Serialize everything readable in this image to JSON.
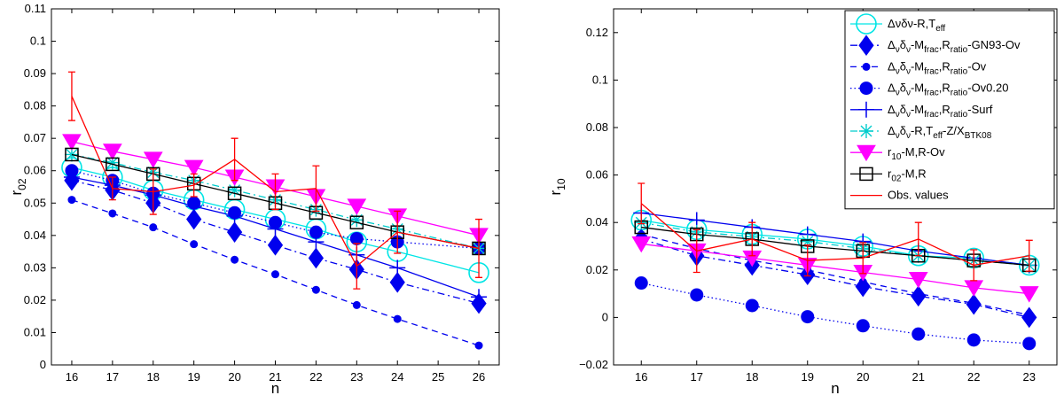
{
  "chart_data": [
    {
      "type": "line",
      "xlabel": "n",
      "ylabel": "r",
      "ylabel_sub": "02",
      "xlim": [
        15.5,
        26.5
      ],
      "ylim": [
        0,
        0.11
      ],
      "xticks": [
        "16",
        "17",
        "18",
        "19",
        "20",
        "21",
        "22",
        "23",
        "24",
        "25",
        "26"
      ],
      "yticks": [
        "0",
        "0.01",
        "0.02",
        "0.03",
        "0.04",
        "0.05",
        "0.06",
        "0.07",
        "0.08",
        "0.09",
        "0.1",
        "0.11"
      ],
      "series": [
        {
          "name": "Δνδν-R,Teff",
          "color": "#00e5e5",
          "dash": "solid",
          "marker": "circle-open",
          "x": [
            16,
            17,
            18,
            19,
            20,
            21,
            22,
            23,
            24,
            26
          ],
          "y": [
            0.061,
            0.058,
            0.054,
            0.051,
            0.048,
            0.045,
            0.042,
            0.038,
            0.035,
            0.0285
          ]
        },
        {
          "name": "Δνδν-Mfrac,Rratio-GN93-Ov",
          "color": "#0000ee",
          "dash": "dashdot",
          "marker": "diamond",
          "x": [
            16,
            17,
            18,
            19,
            20,
            21,
            22,
            23,
            24,
            26
          ],
          "y": [
            0.057,
            0.054,
            0.05,
            0.045,
            0.041,
            0.037,
            0.033,
            0.0295,
            0.0255,
            0.019
          ]
        },
        {
          "name": "Δνδν-Mfrac,Rratio-Ov",
          "color": "#0000ee",
          "dash": "dashed",
          "marker": "dot-small",
          "x": [
            16,
            17,
            18,
            19,
            20,
            21,
            22,
            23,
            24,
            26
          ],
          "y": [
            0.051,
            0.0468,
            0.0425,
            0.0373,
            0.0325,
            0.028,
            0.0232,
            0.0185,
            0.0142,
            0.006
          ]
        },
        {
          "name": "Δνδν-Mfrac,Rratio-Ov0.20",
          "color": "#0000ee",
          "dash": "dotted",
          "marker": "dot-large",
          "x": [
            16,
            17,
            18,
            19,
            20,
            21,
            22,
            23,
            24,
            26
          ],
          "y": [
            0.06,
            0.057,
            0.053,
            0.05,
            0.047,
            0.044,
            0.041,
            0.039,
            0.038,
            0.036
          ]
        },
        {
          "name": "Δνδν-Mfrac,Rratio-Surf",
          "color": "#0000ee",
          "dash": "solid",
          "marker": "plus",
          "x": [
            16,
            17,
            18,
            19,
            20,
            21,
            22,
            23,
            24,
            26
          ],
          "y": [
            0.058,
            0.0555,
            0.0525,
            0.049,
            0.046,
            0.042,
            0.038,
            0.034,
            0.03,
            0.021
          ]
        },
        {
          "name": "Δνδν-R,Teff-Z/XBTK08",
          "color": "#00cccc",
          "dash": "dashdot",
          "marker": "asterisk",
          "x": [
            16,
            17,
            18,
            19,
            20,
            21,
            22,
            23,
            24,
            26
          ],
          "y": [
            0.065,
            0.0625,
            0.0595,
            0.057,
            0.054,
            0.051,
            0.048,
            0.0448,
            0.042,
            0.036
          ]
        },
        {
          "name": "r10-M,R-Ov",
          "color": "#ff00ff",
          "dash": "solid",
          "marker": "triangle-down",
          "x": [
            16,
            17,
            18,
            19,
            20,
            21,
            22,
            23,
            24,
            26
          ],
          "y": [
            0.069,
            0.066,
            0.0635,
            0.061,
            0.058,
            0.055,
            0.052,
            0.049,
            0.046,
            0.04
          ]
        },
        {
          "name": "r02-M,R",
          "color": "#000000",
          "dash": "solid",
          "marker": "square-open",
          "x": [
            16,
            17,
            18,
            19,
            20,
            21,
            22,
            23,
            24,
            26
          ],
          "y": [
            0.065,
            0.062,
            0.059,
            0.056,
            0.053,
            0.05,
            0.047,
            0.044,
            0.041,
            0.036
          ]
        },
        {
          "name": "Obs. values",
          "color": "#ff0000",
          "dash": "solid",
          "marker": "errorbar",
          "x": [
            16,
            17,
            18,
            19,
            20,
            21,
            22,
            23,
            24,
            26
          ],
          "y": [
            0.083,
            0.0545,
            0.0535,
            0.0555,
            0.0635,
            0.0535,
            0.0545,
            0.0305,
            0.041,
            0.036
          ],
          "err": [
            0.0075,
            0.0035,
            0.007,
            0.0035,
            0.0065,
            0.0055,
            0.007,
            0.007,
            0.0065,
            0.009
          ]
        }
      ]
    },
    {
      "type": "line",
      "xlabel": "n",
      "ylabel": "r",
      "ylabel_sub": "10",
      "xlim": [
        15.5,
        23.5
      ],
      "ylim": [
        -0.02,
        0.13
      ],
      "xticks": [
        "16",
        "17",
        "18",
        "19",
        "20",
        "21",
        "22",
        "23"
      ],
      "yticks": [
        "−0.02",
        "0",
        "0.02",
        "0.04",
        "0.06",
        "0.08",
        "0.1",
        "0.12"
      ],
      "series": [
        {
          "name": "Δνδν-R,Teff",
          "color": "#00e5e5",
          "dash": "solid",
          "marker": "circle-open",
          "x": [
            16,
            17,
            18,
            19,
            20,
            21,
            22,
            23
          ],
          "y": [
            0.041,
            0.037,
            0.035,
            0.033,
            0.03,
            0.026,
            0.025,
            0.022
          ]
        },
        {
          "name": "Δνδν-Mfrac,Rratio-GN93-Ov",
          "color": "#0000ee",
          "dash": "dashdot",
          "marker": "diamond",
          "x": [
            16,
            17,
            18,
            19,
            20,
            21,
            22,
            23
          ],
          "y": [
            0.033,
            0.026,
            0.022,
            0.018,
            0.013,
            0.009,
            0.0055,
            0.0
          ]
        },
        {
          "name": "Δνδν-Mfrac,Rratio-Ov",
          "color": "#0000ee",
          "dash": "dashed",
          "marker": "dot-small",
          "x": [
            16,
            17,
            18,
            19,
            20,
            21,
            22,
            23
          ],
          "y": [
            0.035,
            0.029,
            0.024,
            0.02,
            0.015,
            0.01,
            0.006,
            0.001
          ]
        },
        {
          "name": "Δνδν-Mfrac,Rratio-Ov0.20",
          "color": "#0000ee",
          "dash": "dotted",
          "marker": "dot-large",
          "x": [
            16,
            17,
            18,
            19,
            20,
            21,
            22,
            23
          ],
          "y": [
            0.0145,
            0.0095,
            0.005,
            0.0003,
            -0.0035,
            -0.007,
            -0.0095,
            -0.011
          ]
        },
        {
          "name": "Δνδν-Mfrac,Rratio-Surf",
          "color": "#0000ee",
          "dash": "solid",
          "marker": "plus",
          "x": [
            16,
            17,
            18,
            19,
            20,
            21,
            22,
            23
          ],
          "y": [
            0.044,
            0.041,
            0.038,
            0.035,
            0.032,
            0.028,
            0.025,
            0.022
          ]
        },
        {
          "name": "Δνδν-R,Teff-Z/XBTK08",
          "color": "#00cccc",
          "dash": "dashdot",
          "marker": "asterisk",
          "x": [
            16,
            17,
            18,
            19,
            20,
            21,
            22,
            23
          ],
          "y": [
            0.04,
            0.036,
            0.034,
            0.032,
            0.029,
            0.026,
            0.024,
            0.022
          ]
        },
        {
          "name": "r10-M,R-Ov",
          "color": "#ff00ff",
          "dash": "solid",
          "marker": "triangle-down",
          "x": [
            16,
            17,
            18,
            19,
            20,
            21,
            22,
            23
          ],
          "y": [
            0.031,
            0.028,
            0.025,
            0.022,
            0.019,
            0.016,
            0.0125,
            0.01
          ]
        },
        {
          "name": "r02-M,R",
          "color": "#000000",
          "dash": "solid",
          "marker": "square-open",
          "x": [
            16,
            17,
            18,
            19,
            20,
            21,
            22,
            23
          ],
          "y": [
            0.038,
            0.035,
            0.033,
            0.03,
            0.028,
            0.026,
            0.024,
            0.022
          ]
        },
        {
          "name": "Obs. values",
          "color": "#ff0000",
          "dash": "solid",
          "marker": "errorbar",
          "x": [
            16,
            17,
            18,
            19,
            20,
            21,
            22,
            23
          ],
          "y": [
            0.048,
            0.028,
            0.033,
            0.024,
            0.025,
            0.033,
            0.022,
            0.026
          ],
          "err": [
            0.0085,
            0.009,
            0.007,
            0.0065,
            0.0065,
            0.007,
            0.0065,
            0.0065
          ]
        }
      ]
    }
  ],
  "legend": {
    "placement": "top-right",
    "entries": [
      {
        "series": 0,
        "parts": [
          [
            "Δ",
            ""
          ],
          [
            "ν",
            ""
          ],
          [
            "δ",
            ""
          ],
          [
            "ν",
            ""
          ],
          [
            "-R,T",
            ""
          ],
          [
            "eff",
            "sub"
          ]
        ]
      },
      {
        "series": 1,
        "parts": [
          [
            "Δ",
            ""
          ],
          [
            "ν",
            "sub"
          ],
          [
            "δ",
            ""
          ],
          [
            "ν",
            "sub"
          ],
          [
            "-M",
            ""
          ],
          [
            "frac",
            "sub"
          ],
          [
            ",R",
            ""
          ],
          [
            "ratio",
            "sub"
          ],
          [
            "-GN93-Ov",
            ""
          ]
        ]
      },
      {
        "series": 2,
        "parts": [
          [
            "Δ",
            ""
          ],
          [
            "ν",
            "sub"
          ],
          [
            "δ",
            ""
          ],
          [
            "ν",
            "sub"
          ],
          [
            "-M",
            ""
          ],
          [
            "frac",
            "sub"
          ],
          [
            ",R",
            ""
          ],
          [
            "ratio",
            "sub"
          ],
          [
            "-Ov",
            ""
          ]
        ]
      },
      {
        "series": 3,
        "parts": [
          [
            "Δ",
            ""
          ],
          [
            "ν",
            "sub"
          ],
          [
            "δ",
            ""
          ],
          [
            "ν",
            "sub"
          ],
          [
            "-M",
            ""
          ],
          [
            "frac",
            "sub"
          ],
          [
            ",R",
            ""
          ],
          [
            "ratio",
            "sub"
          ],
          [
            "-Ov0.20",
            ""
          ]
        ]
      },
      {
        "series": 4,
        "parts": [
          [
            "Δ",
            ""
          ],
          [
            "ν",
            "sub"
          ],
          [
            "δ",
            ""
          ],
          [
            "ν",
            "sub"
          ],
          [
            "-M",
            ""
          ],
          [
            "frac",
            "sub"
          ],
          [
            ",R",
            ""
          ],
          [
            "ratio",
            "sub"
          ],
          [
            "-Surf",
            ""
          ]
        ]
      },
      {
        "series": 5,
        "parts": [
          [
            "Δ",
            ""
          ],
          [
            "ν",
            "sub"
          ],
          [
            "δ",
            ""
          ],
          [
            "ν",
            "sub"
          ],
          [
            "-R,T",
            ""
          ],
          [
            "eff",
            "sub"
          ],
          [
            "-Z/X",
            ""
          ],
          [
            "BTK08",
            "sub"
          ]
        ]
      },
      {
        "series": 6,
        "parts": [
          [
            "r",
            ""
          ],
          [
            "10",
            "sub"
          ],
          [
            "-M,R-Ov",
            ""
          ]
        ]
      },
      {
        "series": 7,
        "parts": [
          [
            "r",
            ""
          ],
          [
            "02",
            "sub"
          ],
          [
            "-M,R",
            ""
          ]
        ]
      },
      {
        "series": 8,
        "parts": [
          [
            "Obs. values",
            ""
          ]
        ]
      }
    ]
  }
}
